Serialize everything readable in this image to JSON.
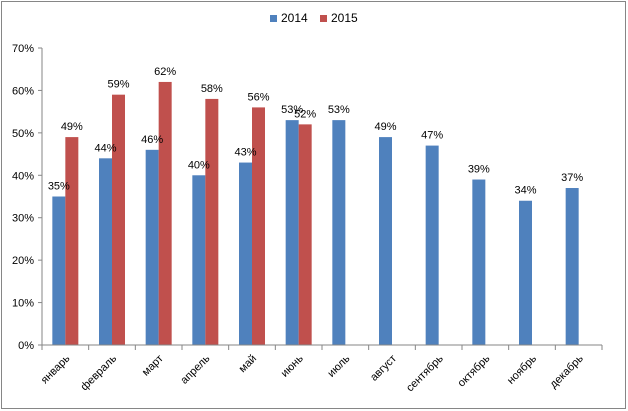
{
  "chart_data": {
    "type": "bar",
    "categories": [
      "январь",
      "февраль",
      "март",
      "апрель",
      "май",
      "июнь",
      "июль",
      "август",
      "сентябрь",
      "октябрь",
      "ноябрь",
      "декабрь"
    ],
    "series": [
      {
        "name": "2014",
        "color": "#4f81bd",
        "values": [
          35,
          44,
          46,
          40,
          43,
          53,
          53,
          49,
          47,
          39,
          34,
          37
        ]
      },
      {
        "name": "2015",
        "color": "#c0504d",
        "values": [
          49,
          59,
          62,
          58,
          56,
          52,
          null,
          null,
          null,
          null,
          null,
          null
        ]
      }
    ],
    "ylim": [
      0,
      70
    ],
    "yticks": [
      "0%",
      "10%",
      "20%",
      "30%",
      "40%",
      "50%",
      "60%",
      "70%"
    ],
    "value_suffix": "%",
    "legend_position": "top",
    "grid": false
  }
}
